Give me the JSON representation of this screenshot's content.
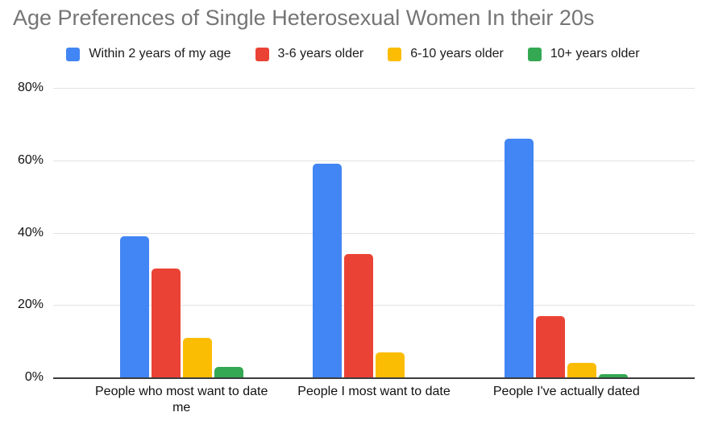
{
  "chart_data": {
    "type": "bar",
    "title": "Age Preferences of Single Heterosexual Women In their 20s",
    "categories": [
      "People who most want to date me",
      "People I most want to date",
      "People I've actually dated"
    ],
    "series": [
      {
        "name": "Within 2 years of my age",
        "color": "#4285F4",
        "values": [
          39,
          59,
          66
        ]
      },
      {
        "name": "3-6 years older",
        "color": "#EA4335",
        "values": [
          30,
          34,
          17
        ]
      },
      {
        "name": "6-10 years older",
        "color": "#FBBC04",
        "values": [
          11,
          7,
          4
        ]
      },
      {
        "name": "10+ years older",
        "color": "#34A853",
        "values": [
          3,
          0,
          1
        ]
      }
    ],
    "xlabel": "",
    "ylabel": "",
    "ylim": [
      0,
      80
    ],
    "ytick_values": [
      0,
      20,
      40,
      60,
      80
    ],
    "ytick_labels": [
      "0%",
      "20%",
      "40%",
      "60%",
      "80%"
    ],
    "legend_position": "top",
    "grid": true
  },
  "style": {
    "title_color": "#757575",
    "axis_text_color": "#111111",
    "gridline_color": "#e3e3e3",
    "axis_line_color": "#3c3c3c",
    "background_color": "#ffffff"
  }
}
